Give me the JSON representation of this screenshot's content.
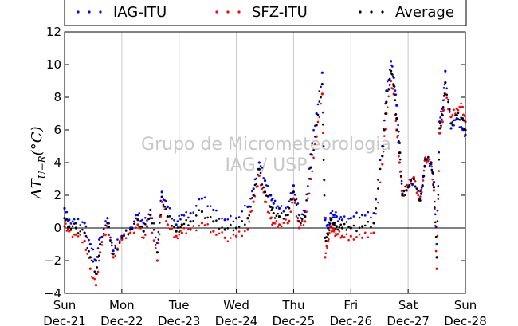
{
  "chart_data": {
    "type": "scatter",
    "ylabel": "ΔT_{U−R}(°C)",
    "ylabel_main": "ΔT",
    "ylabel_sub": "U−R",
    "ylabel_unit": "(°C)",
    "ylim": [
      -4,
      12
    ],
    "xlim": [
      0,
      7
    ],
    "yticks": [
      -4,
      -2,
      0,
      2,
      4,
      6,
      8,
      10,
      12
    ],
    "ytick_labels": [
      "−4",
      "−2",
      "0",
      "2",
      "4",
      "6",
      "8",
      "10",
      "12"
    ],
    "xticks": [
      0,
      1,
      2,
      3,
      4,
      5,
      6,
      7
    ],
    "xtick_day": [
      "Sun",
      "Mon",
      "Tue",
      "Wed",
      "Thu",
      "Fri",
      "Sat",
      "Sun"
    ],
    "xtick_date": [
      "Dec-21",
      "Dec-22",
      "Dec-23",
      "Dec-24",
      "Dec-25",
      "Dec-26",
      "Dec-27",
      "Dec-28"
    ],
    "grid": "vertical",
    "zero_line": true,
    "legend_position": "top",
    "watermark": [
      "Grupo de Micrometeorologia",
      "IAG / USP"
    ],
    "x": [
      0,
      0.08,
      0.2,
      0.35,
      0.45,
      0.55,
      0.62,
      0.75,
      0.85,
      1.0,
      1.15,
      1.28,
      1.38,
      1.5,
      1.62,
      1.7,
      1.8,
      1.95,
      2.05,
      2.2,
      2.4,
      2.6,
      2.8,
      3.0,
      3.2,
      3.3,
      3.4,
      3.5,
      3.6,
      3.65,
      3.75,
      3.9,
      4.0,
      4.1,
      4.2,
      4.3,
      4.4,
      4.5,
      4.55,
      4.6,
      4.65,
      4.7,
      4.75,
      4.85,
      5.0,
      5.2,
      5.4,
      5.55,
      5.62,
      5.7,
      5.75,
      5.8,
      5.85,
      5.9,
      6.0,
      6.1,
      6.2,
      6.25,
      6.3,
      6.4,
      6.45,
      6.5,
      6.55,
      6.6,
      6.65,
      6.75,
      6.85,
      6.95,
      7.0
    ],
    "series": [
      {
        "name": "IAG-ITU",
        "color": "#0000ff",
        "values": [
          1.2,
          0.5,
          0.3,
          0.3,
          -1.0,
          -2.0,
          -0.6,
          0.6,
          -1.4,
          -0.5,
          0.0,
          0.8,
          0.3,
          1.1,
          -0.9,
          2.2,
          1.3,
          0.2,
          0.8,
          0.9,
          1.8,
          1.1,
          0.5,
          0.6,
          1.3,
          2.4,
          4.0,
          2.9,
          2.0,
          1.5,
          1.2,
          1.3,
          2.6,
          0.8,
          1.0,
          4.5,
          7.0,
          9.5,
          0.5,
          0.0,
          0.9,
          0.8,
          0.7,
          0.5,
          0.6,
          0.8,
          0.9,
          5.0,
          8.4,
          10.2,
          9.2,
          7.5,
          5.2,
          2.1,
          2.5,
          3.0,
          1.8,
          2.6,
          4.2,
          3.9,
          2.8,
          -1.0,
          6.5,
          7.3,
          9.6,
          6.1,
          6.7,
          6.1,
          5.7
        ]
      },
      {
        "name": "SFZ-ITU",
        "color": "#ff0000",
        "values": [
          0.1,
          -0.2,
          -0.4,
          -0.8,
          -2.5,
          -3.5,
          -1.5,
          0.1,
          -1.8,
          -0.7,
          -0.3,
          0.2,
          -0.6,
          0.6,
          -2.0,
          1.6,
          0.2,
          -0.5,
          -0.3,
          -0.1,
          0.3,
          -0.2,
          -0.6,
          -0.5,
          -0.1,
          1.6,
          3.2,
          1.6,
          0.6,
          0.3,
          0.2,
          0.3,
          1.8,
          0.0,
          0.4,
          3.0,
          5.6,
          8.2,
          -1.8,
          -0.8,
          0.1,
          -0.2,
          -0.4,
          -0.5,
          -0.5,
          -0.6,
          -0.3,
          3.9,
          7.0,
          9.0,
          8.2,
          6.0,
          4.0,
          2.0,
          2.6,
          3.1,
          1.7,
          2.6,
          4.3,
          4.0,
          2.3,
          -2.5,
          5.8,
          6.5,
          8.2,
          6.8,
          7.3,
          7.4,
          6.5
        ]
      },
      {
        "name": "Average",
        "color": "#000000",
        "values": [
          0.6,
          0.1,
          0.0,
          -0.3,
          -1.8,
          -2.8,
          -1.0,
          0.3,
          -1.6,
          -0.6,
          -0.1,
          0.5,
          -0.2,
          0.8,
          -1.5,
          1.9,
          0.7,
          -0.2,
          0.2,
          0.4,
          1.0,
          0.4,
          -0.1,
          0.0,
          0.6,
          2.0,
          3.6,
          2.2,
          1.3,
          0.9,
          0.7,
          0.8,
          2.2,
          0.4,
          0.7,
          3.7,
          6.3,
          8.8,
          -0.6,
          -0.4,
          0.5,
          0.3,
          0.1,
          0.0,
          0.0,
          0.1,
          0.3,
          4.4,
          7.7,
          9.6,
          8.7,
          6.7,
          4.6,
          2.0,
          2.5,
          3.0,
          1.7,
          2.6,
          4.2,
          4.0,
          2.5,
          -1.8,
          6.1,
          6.9,
          8.9,
          6.4,
          6.9,
          6.7,
          6.0
        ]
      }
    ]
  }
}
